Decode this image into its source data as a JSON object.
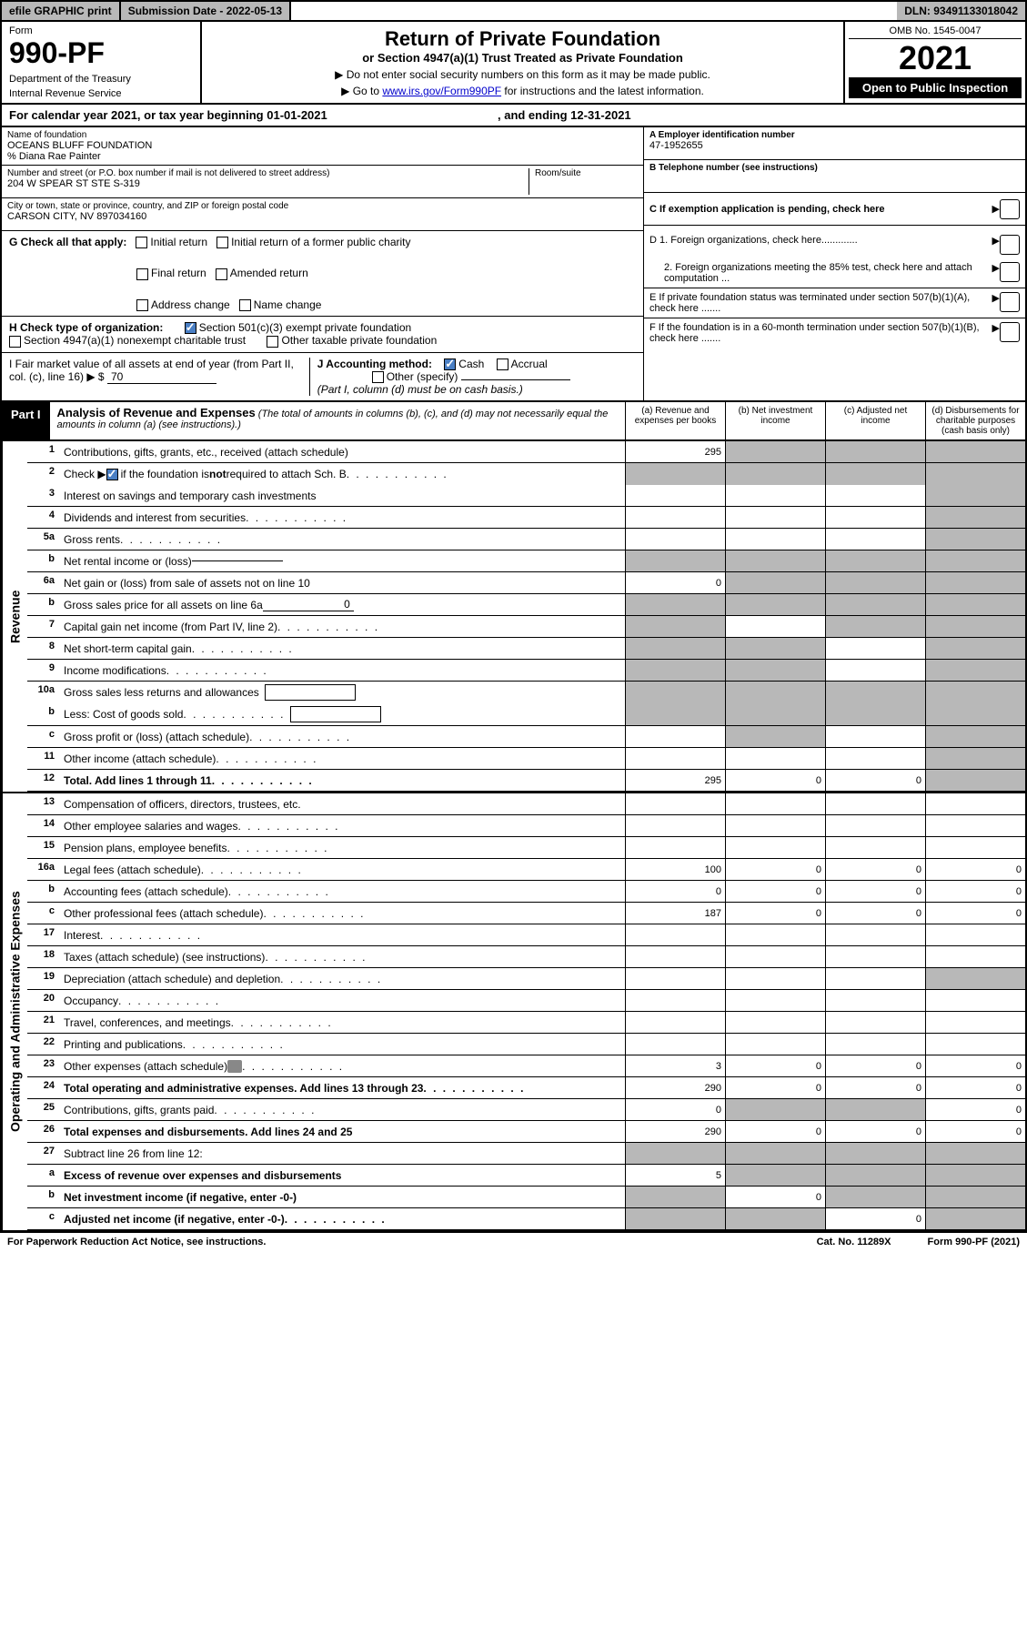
{
  "topbar": {
    "efile": "efile GRAPHIC print",
    "subdate_label": "Submission Date - ",
    "subdate": "2022-05-13",
    "dln_label": "DLN: ",
    "dln": "93491133018042"
  },
  "header": {
    "form_label": "Form",
    "form_number": "990-PF",
    "dept1": "Department of the Treasury",
    "dept2": "Internal Revenue Service",
    "title": "Return of Private Foundation",
    "subtitle": "or Section 4947(a)(1) Trust Treated as Private Foundation",
    "note1": "▶ Do not enter social security numbers on this form as it may be made public.",
    "note2_pre": "▶ Go to ",
    "note2_link": "www.irs.gov/Form990PF",
    "note2_post": " for instructions and the latest information.",
    "omb": "OMB No. 1545-0047",
    "year": "2021",
    "open_public": "Open to Public Inspection"
  },
  "cal_year": {
    "text_pre": "For calendar year 2021, or tax year beginning ",
    "begin": "01-01-2021",
    "text_mid": " , and ending ",
    "end": "12-31-2021"
  },
  "info": {
    "name_lbl": "Name of foundation",
    "name": "OCEANS BLUFF FOUNDATION",
    "care_of": "% Diana Rae Painter",
    "addr_lbl": "Number and street (or P.O. box number if mail is not delivered to street address)",
    "addr": "204 W SPEAR ST STE S-319",
    "room_lbl": "Room/suite",
    "city_lbl": "City or town, state or province, country, and ZIP or foreign postal code",
    "city": "CARSON CITY, NV  897034160",
    "ein_lbl": "A Employer identification number",
    "ein": "47-1952655",
    "tel_lbl": "B Telephone number (see instructions)",
    "c_lbl": "C If exemption application is pending, check here",
    "d1": "D 1. Foreign organizations, check here.............",
    "d2": "2. Foreign organizations meeting the 85% test, check here and attach computation ...",
    "e_lbl": "E  If private foundation status was terminated under section 507(b)(1)(A), check here .......",
    "f_lbl": "F  If the foundation is in a 60-month termination under section 507(b)(1)(B), check here .......",
    "g_lbl": "G Check all that apply:",
    "g_opts": [
      "Initial return",
      "Initial return of a former public charity",
      "Final return",
      "Amended return",
      "Address change",
      "Name change"
    ],
    "h_lbl": "H Check type of organization:",
    "h_opts": [
      "Section 501(c)(3) exempt private foundation",
      "Section 4947(a)(1) nonexempt charitable trust",
      "Other taxable private foundation"
    ],
    "i_lbl": "I Fair market value of all assets at end of year (from Part II, col. (c), line 16) ▶ $",
    "i_val": "70",
    "j_lbl": "J Accounting method:",
    "j_opts": [
      "Cash",
      "Accrual"
    ],
    "j_other": "Other (specify)",
    "j_note": "(Part I, column (d) must be on cash basis.)"
  },
  "part1": {
    "label": "Part I",
    "title": "Analysis of Revenue and Expenses",
    "note": " (The total of amounts in columns (b), (c), and (d) may not necessarily equal the amounts in column (a) (see instructions).)",
    "cols": [
      "(a)   Revenue and expenses per books",
      "(b)   Net investment income",
      "(c)   Adjusted net income",
      "(d)   Disbursements for charitable purposes (cash basis only)"
    ]
  },
  "side_labels": {
    "revenue": "Revenue",
    "expenses": "Operating and Administrative Expenses"
  },
  "rows": [
    {
      "n": "1",
      "d": "Contributions, gifts, grants, etc., received (attach schedule)",
      "a": "295",
      "shaded": [
        false,
        true,
        true,
        true
      ]
    },
    {
      "n": "2",
      "d": "Check ▶ ☑ if the foundation is not required to attach Sch. B",
      "shaded": [
        true,
        true,
        true,
        true
      ],
      "nob": true,
      "check": true
    },
    {
      "n": "3",
      "d": "Interest on savings and temporary cash investments",
      "shaded": [
        false,
        false,
        false,
        true
      ]
    },
    {
      "n": "4",
      "d": "Dividends and interest from securities",
      "dots": true,
      "shaded": [
        false,
        false,
        false,
        true
      ]
    },
    {
      "n": "5a",
      "d": "Gross rents",
      "dots": true,
      "shaded": [
        false,
        false,
        false,
        true
      ]
    },
    {
      "n": "b",
      "d": "Net rental income or (loss)",
      "inline": "",
      "shaded": [
        true,
        true,
        true,
        true
      ]
    },
    {
      "n": "6a",
      "d": "Net gain or (loss) from sale of assets not on line 10",
      "a": "0",
      "shaded": [
        false,
        true,
        true,
        true
      ]
    },
    {
      "n": "b",
      "d": "Gross sales price for all assets on line 6a",
      "inline": "0",
      "shaded": [
        true,
        true,
        true,
        true
      ]
    },
    {
      "n": "7",
      "d": "Capital gain net income (from Part IV, line 2)",
      "dots": true,
      "shaded": [
        true,
        false,
        true,
        true
      ]
    },
    {
      "n": "8",
      "d": "Net short-term capital gain",
      "dots": true,
      "shaded": [
        true,
        true,
        false,
        true
      ]
    },
    {
      "n": "9",
      "d": "Income modifications",
      "dots": true,
      "shaded": [
        true,
        true,
        false,
        true
      ]
    },
    {
      "n": "10a",
      "d": "Gross sales less returns and allowances",
      "box": true,
      "shaded": [
        true,
        true,
        true,
        true
      ],
      "nob": true
    },
    {
      "n": "b",
      "d": "Less: Cost of goods sold",
      "dots": true,
      "box": true,
      "shaded": [
        true,
        true,
        true,
        true
      ]
    },
    {
      "n": "c",
      "d": "Gross profit or (loss) (attach schedule)",
      "dots": true,
      "shaded": [
        false,
        true,
        false,
        true
      ]
    },
    {
      "n": "11",
      "d": "Other income (attach schedule)",
      "dots": true,
      "shaded": [
        false,
        false,
        false,
        true
      ]
    },
    {
      "n": "12",
      "d": "Total. Add lines 1 through 11",
      "dots": true,
      "bold": true,
      "a": "295",
      "b": "0",
      "c": "0",
      "shaded": [
        false,
        false,
        false,
        true
      ]
    }
  ],
  "exp_rows": [
    {
      "n": "13",
      "d": "Compensation of officers, directors, trustees, etc.",
      "shaded": [
        false,
        false,
        false,
        false
      ]
    },
    {
      "n": "14",
      "d": "Other employee salaries and wages",
      "dots": true,
      "shaded": [
        false,
        false,
        false,
        false
      ]
    },
    {
      "n": "15",
      "d": "Pension plans, employee benefits",
      "dots": true,
      "shaded": [
        false,
        false,
        false,
        false
      ]
    },
    {
      "n": "16a",
      "d": "Legal fees (attach schedule)",
      "dots": true,
      "a": "100",
      "b": "0",
      "c": "0",
      "e": "0",
      "shaded": [
        false,
        false,
        false,
        false
      ]
    },
    {
      "n": "b",
      "d": "Accounting fees (attach schedule)",
      "dots": true,
      "a": "0",
      "b": "0",
      "c": "0",
      "e": "0",
      "shaded": [
        false,
        false,
        false,
        false
      ]
    },
    {
      "n": "c",
      "d": "Other professional fees (attach schedule)",
      "dots": true,
      "a": "187",
      "b": "0",
      "c": "0",
      "e": "0",
      "shaded": [
        false,
        false,
        false,
        false
      ]
    },
    {
      "n": "17",
      "d": "Interest",
      "dots": true,
      "shaded": [
        false,
        false,
        false,
        false
      ]
    },
    {
      "n": "18",
      "d": "Taxes (attach schedule) (see instructions)",
      "dots": true,
      "shaded": [
        false,
        false,
        false,
        false
      ]
    },
    {
      "n": "19",
      "d": "Depreciation (attach schedule) and depletion",
      "dots": true,
      "shaded": [
        false,
        false,
        false,
        true
      ]
    },
    {
      "n": "20",
      "d": "Occupancy",
      "dots": true,
      "shaded": [
        false,
        false,
        false,
        false
      ]
    },
    {
      "n": "21",
      "d": "Travel, conferences, and meetings",
      "dots": true,
      "shaded": [
        false,
        false,
        false,
        false
      ]
    },
    {
      "n": "22",
      "d": "Printing and publications",
      "dots": true,
      "shaded": [
        false,
        false,
        false,
        false
      ]
    },
    {
      "n": "23",
      "d": "Other expenses (attach schedule)",
      "dots": true,
      "attach": true,
      "a": "3",
      "b": "0",
      "c": "0",
      "e": "0",
      "shaded": [
        false,
        false,
        false,
        false
      ]
    },
    {
      "n": "24",
      "d": "Total operating and administrative expenses. Add lines 13 through 23",
      "dots": true,
      "bold": true,
      "a": "290",
      "b": "0",
      "c": "0",
      "e": "0",
      "shaded": [
        false,
        false,
        false,
        false
      ]
    },
    {
      "n": "25",
      "d": "Contributions, gifts, grants paid",
      "dots": true,
      "a": "0",
      "e": "0",
      "shaded": [
        false,
        true,
        true,
        false
      ]
    },
    {
      "n": "26",
      "d": "Total expenses and disbursements. Add lines 24 and 25",
      "bold": true,
      "a": "290",
      "b": "0",
      "c": "0",
      "e": "0",
      "shaded": [
        false,
        false,
        false,
        false
      ]
    },
    {
      "n": "27",
      "d": "Subtract line 26 from line 12:",
      "shaded": [
        true,
        true,
        true,
        true
      ]
    },
    {
      "n": "a",
      "d": "Excess of revenue over expenses and disbursements",
      "bold": true,
      "a": "5",
      "shaded": [
        false,
        true,
        true,
        true
      ]
    },
    {
      "n": "b",
      "d": "Net investment income (if negative, enter -0-)",
      "bold": true,
      "b": "0",
      "shaded": [
        true,
        false,
        true,
        true
      ]
    },
    {
      "n": "c",
      "d": "Adjusted net income (if negative, enter -0-)",
      "bold": true,
      "dots": true,
      "c": "0",
      "shaded": [
        true,
        true,
        false,
        true
      ]
    }
  ],
  "footer": {
    "left": "For Paperwork Reduction Act Notice, see instructions.",
    "mid": "Cat. No. 11289X",
    "right": "Form 990-PF (2021)"
  }
}
